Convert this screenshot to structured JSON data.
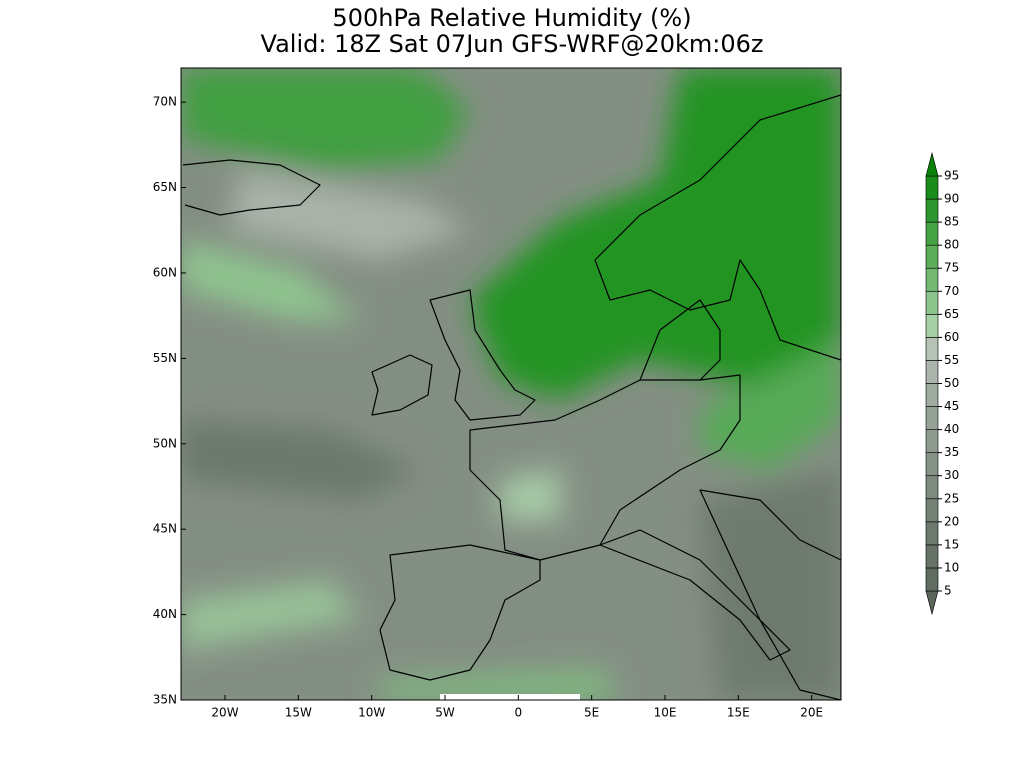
{
  "header": {
    "title": "500hPa Relative Humidity (%)",
    "subtitle": "Valid: 18Z Sat 07Jun GFS-WRF@20km:06z"
  },
  "map": {
    "lonlim": [
      -23,
      22
    ],
    "latlim": [
      35,
      72
    ],
    "lonticks": [
      {
        "value": -20,
        "label": "20W"
      },
      {
        "value": -15,
        "label": "15W"
      },
      {
        "value": -10,
        "label": "10W"
      },
      {
        "value": -5,
        "label": "5W"
      },
      {
        "value": 0,
        "label": "0"
      },
      {
        "value": 5,
        "label": "5E"
      },
      {
        "value": 10,
        "label": "10E"
      },
      {
        "value": 15,
        "label": "15E"
      },
      {
        "value": 20,
        "label": "20E"
      }
    ],
    "latticks": [
      {
        "value": 70,
        "label": "70N"
      },
      {
        "value": 65,
        "label": "65N"
      },
      {
        "value": 60,
        "label": "60N"
      },
      {
        "value": 55,
        "label": "55N"
      },
      {
        "value": 50,
        "label": "50N"
      },
      {
        "value": 45,
        "label": "45N"
      },
      {
        "value": 40,
        "label": "40N"
      },
      {
        "value": 35,
        "label": "35N"
      }
    ]
  },
  "colorbar": {
    "levels": [
      5,
      10,
      15,
      20,
      25,
      30,
      35,
      40,
      45,
      50,
      55,
      60,
      65,
      70,
      75,
      80,
      85,
      90,
      95
    ],
    "colors": [
      "#5a665a",
      "#606c60",
      "#677367",
      "#6e7a6e",
      "#768276",
      "#7e8a7e",
      "#869286",
      "#8e9a8e",
      "#97a297",
      "#a0aba0",
      "#aab4aa",
      "#b6c2b6",
      "#a5cfa5",
      "#8cc48c",
      "#74b874",
      "#5cad5c",
      "#45a245",
      "#2f972f",
      "#1a8c1a",
      "#0a820a"
    ]
  }
}
